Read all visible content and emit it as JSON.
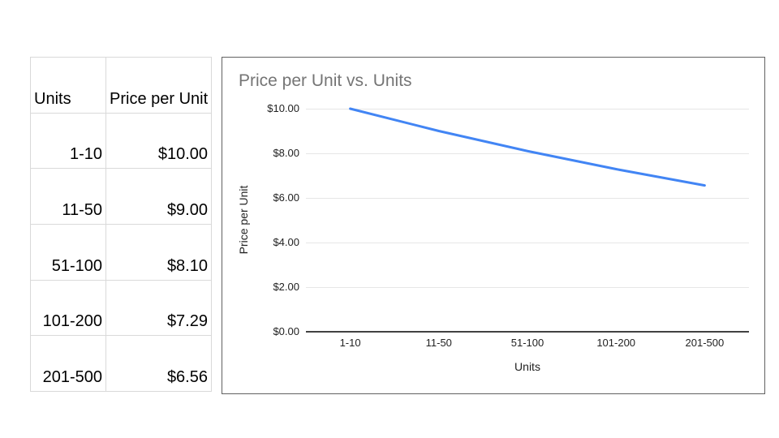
{
  "table": {
    "headers": [
      "Units",
      "Price per Unit"
    ],
    "rows": [
      {
        "units": "1-10",
        "price": "$10.00"
      },
      {
        "units": "11-50",
        "price": "$9.00"
      },
      {
        "units": "51-100",
        "price": "$8.10"
      },
      {
        "units": "101-200",
        "price": "$7.29"
      },
      {
        "units": "201-500",
        "price": "$6.56"
      }
    ]
  },
  "chart_data": {
    "type": "line",
    "title": "Price per Unit vs. Units",
    "categories": [
      "1-10",
      "11-50",
      "51-100",
      "101-200",
      "201-500"
    ],
    "values": [
      10.0,
      9.0,
      8.1,
      7.29,
      6.56
    ],
    "xlabel": "Units",
    "ylabel": "Price per Unit",
    "ylim": [
      0,
      10
    ],
    "yticks": [
      0,
      2,
      4,
      6,
      8,
      10
    ],
    "ytick_labels": [
      "$0.00",
      "$2.00",
      "$4.00",
      "$6.00",
      "$8.00",
      "$10.00"
    ],
    "grid": true,
    "legend": "none",
    "colors": {
      "line": "#4285f4",
      "title": "#757575",
      "gridline": "#e6e6e6",
      "axis_line": "#424242",
      "tick_text": "#222222"
    }
  }
}
